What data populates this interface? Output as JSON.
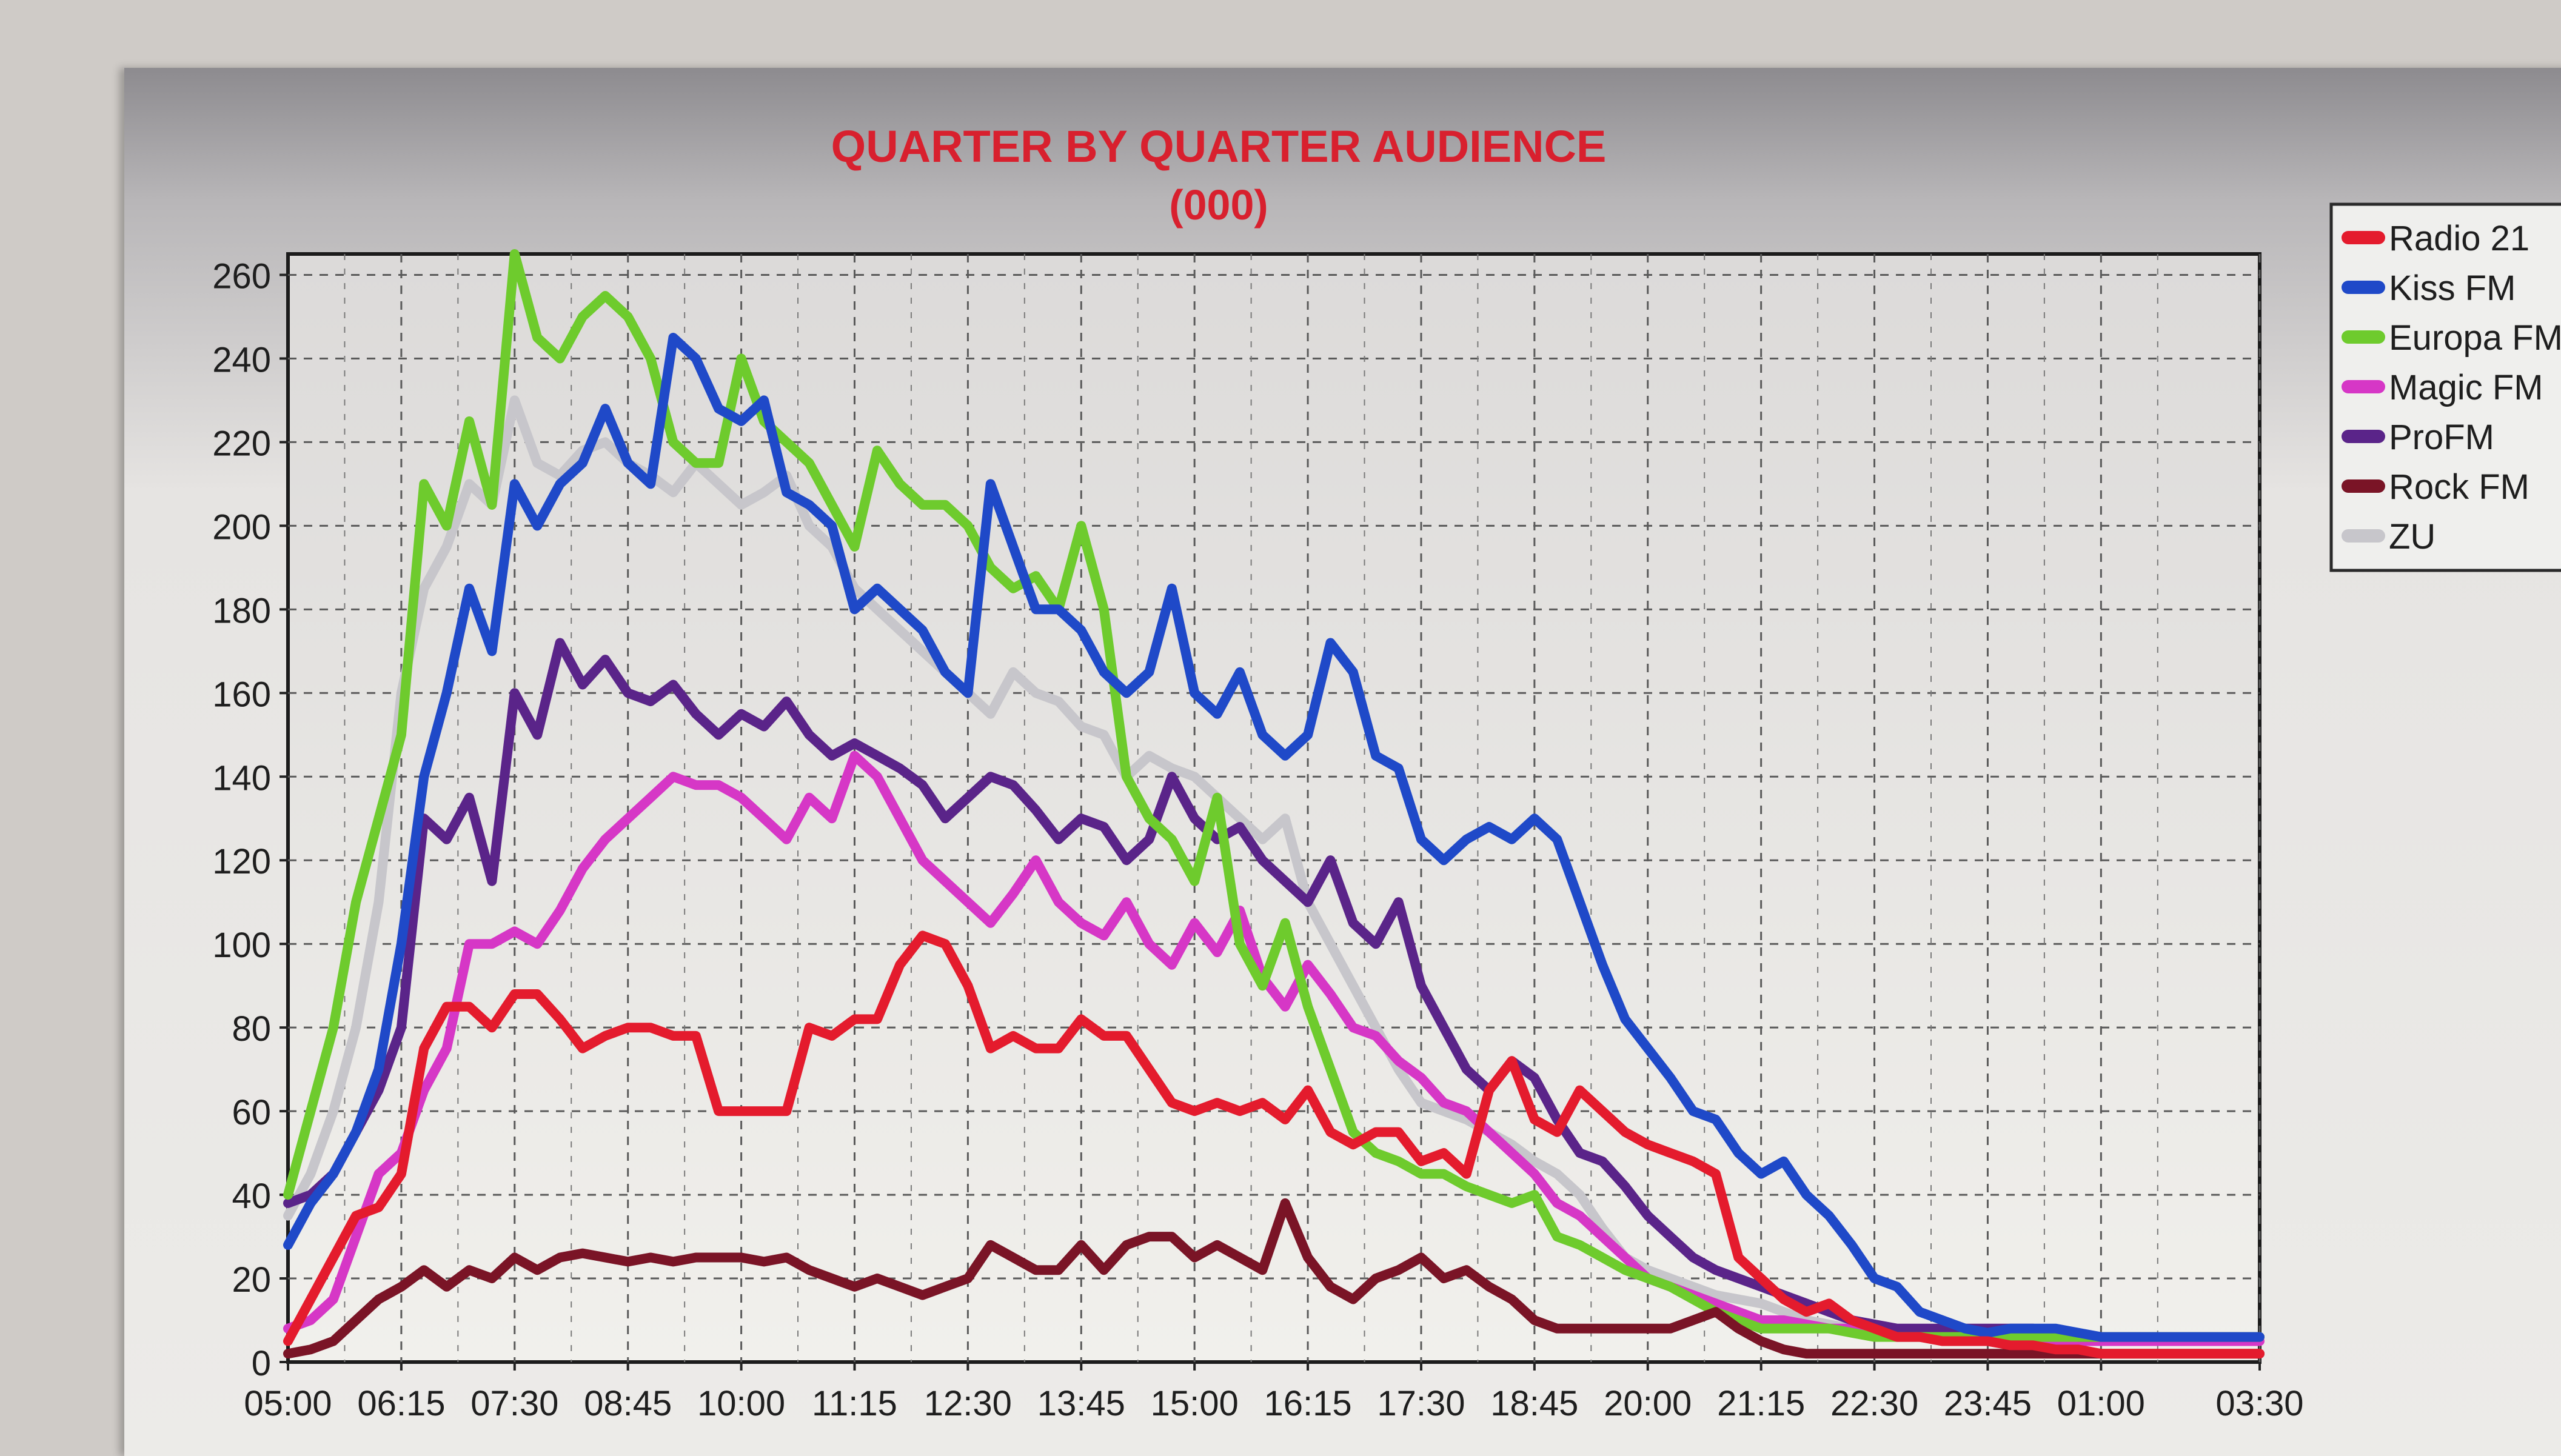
{
  "chart_data": {
    "type": "line",
    "title": "QUARTER BY QUARTER AUDIENCE",
    "subtitle": "(000)",
    "xlabel": "",
    "ylabel": "",
    "ylim": [
      0,
      265
    ],
    "yticks": [
      0,
      20,
      40,
      60,
      80,
      100,
      120,
      140,
      160,
      180,
      200,
      220,
      240,
      260
    ],
    "xticks": [
      "05:00",
      "06:15",
      "07:30",
      "08:45",
      "10:00",
      "11:15",
      "12:30",
      "13:45",
      "15:00",
      "16:15",
      "17:30",
      "18:45",
      "20:00",
      "21:15",
      "22:30",
      "23:45",
      "01:00",
      "03:30"
    ],
    "x_positions": [
      0,
      5,
      10,
      15,
      20,
      25,
      30,
      35,
      40,
      45,
      50,
      55,
      60,
      65,
      70,
      75,
      80,
      87
    ],
    "x_range": [
      0,
      87
    ],
    "grid": true,
    "legend_position": "top-right",
    "series": [
      {
        "name": "Radio 21",
        "color": "#e41b2d",
        "x": [
          0,
          1,
          2,
          3,
          4,
          5,
          6,
          7,
          8,
          9,
          10,
          11,
          12,
          13,
          14,
          15,
          16,
          17,
          18,
          19,
          20,
          21,
          22,
          23,
          24,
          25,
          26,
          27,
          28,
          29,
          30,
          31,
          32,
          33,
          34,
          35,
          36,
          37,
          38,
          39,
          40,
          41,
          42,
          43,
          44,
          45,
          46,
          47,
          48,
          49,
          50,
          51,
          52,
          53,
          54,
          55,
          56,
          57,
          58,
          59,
          60,
          61,
          62,
          63,
          64,
          65,
          66,
          67,
          68,
          69,
          70,
          71,
          72,
          73,
          74,
          75,
          76,
          77,
          78,
          79,
          80,
          81,
          82,
          83,
          84,
          85,
          86,
          87
        ],
        "values": [
          5,
          15,
          25,
          35,
          37,
          45,
          75,
          85,
          85,
          80,
          88,
          88,
          82,
          75,
          78,
          80,
          80,
          78,
          78,
          60,
          60,
          60,
          60,
          80,
          78,
          82,
          82,
          95,
          102,
          100,
          90,
          75,
          78,
          75,
          75,
          82,
          78,
          78,
          70,
          62,
          60,
          62,
          60,
          62,
          58,
          65,
          55,
          52,
          55,
          55,
          48,
          50,
          45,
          65,
          72,
          58,
          55,
          65,
          60,
          55,
          52,
          50,
          48,
          45,
          25,
          20,
          15,
          12,
          14,
          10,
          8,
          6,
          6,
          5,
          5,
          5,
          4,
          4,
          3,
          3,
          2,
          2,
          2,
          2,
          2,
          2,
          2,
          2
        ]
      },
      {
        "name": "Kiss FM",
        "color": "#1f49c8",
        "x": [
          0,
          1,
          2,
          3,
          4,
          5,
          6,
          7,
          8,
          9,
          10,
          11,
          12,
          13,
          14,
          15,
          16,
          17,
          18,
          19,
          20,
          21,
          22,
          23,
          24,
          25,
          26,
          27,
          28,
          29,
          30,
          31,
          32,
          33,
          34,
          35,
          36,
          37,
          38,
          39,
          40,
          41,
          42,
          43,
          44,
          45,
          46,
          47,
          48,
          49,
          50,
          51,
          52,
          53,
          54,
          55,
          56,
          57,
          58,
          59,
          60,
          61,
          62,
          63,
          64,
          65,
          66,
          67,
          68,
          69,
          70,
          71,
          72,
          73,
          74,
          75,
          76,
          77,
          78,
          79,
          80,
          81,
          82,
          83,
          84,
          85,
          86,
          87
        ],
        "values": [
          28,
          38,
          45,
          55,
          70,
          100,
          140,
          160,
          185,
          170,
          210,
          200,
          210,
          215,
          228,
          215,
          210,
          245,
          240,
          228,
          225,
          230,
          208,
          205,
          200,
          180,
          185,
          180,
          175,
          165,
          160,
          210,
          195,
          180,
          180,
          175,
          165,
          160,
          165,
          185,
          160,
          155,
          165,
          150,
          145,
          150,
          172,
          165,
          145,
          142,
          125,
          120,
          125,
          128,
          125,
          130,
          125,
          110,
          95,
          82,
          75,
          68,
          60,
          58,
          50,
          45,
          48,
          40,
          35,
          28,
          20,
          18,
          12,
          10,
          8,
          7,
          8,
          8,
          8,
          7,
          6,
          6,
          6,
          6,
          6,
          6,
          6,
          6
        ]
      },
      {
        "name": "Europa FM",
        "color": "#6ecb2d",
        "x": [
          0,
          1,
          2,
          3,
          4,
          5,
          6,
          7,
          8,
          9,
          10,
          11,
          12,
          13,
          14,
          15,
          16,
          17,
          18,
          19,
          20,
          21,
          22,
          23,
          24,
          25,
          26,
          27,
          28,
          29,
          30,
          31,
          32,
          33,
          34,
          35,
          36,
          37,
          38,
          39,
          40,
          41,
          42,
          43,
          44,
          45,
          46,
          47,
          48,
          49,
          50,
          51,
          52,
          53,
          54,
          55,
          56,
          57,
          58,
          59,
          60,
          61,
          62,
          63,
          64,
          65,
          66,
          67,
          68,
          69,
          70,
          71,
          72,
          73,
          74,
          75,
          76,
          77,
          78,
          79,
          80,
          81,
          82,
          83,
          84,
          85,
          86,
          87
        ],
        "values": [
          40,
          60,
          80,
          110,
          130,
          150,
          210,
          200,
          225,
          205,
          265,
          245,
          240,
          250,
          255,
          250,
          240,
          220,
          215,
          215,
          240,
          225,
          220,
          215,
          205,
          195,
          218,
          210,
          205,
          205,
          200,
          190,
          185,
          188,
          180,
          200,
          180,
          140,
          130,
          125,
          115,
          135,
          100,
          90,
          105,
          85,
          70,
          55,
          50,
          48,
          45,
          45,
          42,
          40,
          38,
          40,
          30,
          28,
          25,
          22,
          20,
          18,
          15,
          12,
          10,
          8,
          8,
          8,
          8,
          7,
          6,
          6,
          6,
          6,
          6,
          6,
          6,
          6,
          6,
          6,
          6,
          6,
          6,
          6,
          6,
          6,
          6,
          6
        ]
      },
      {
        "name": "Magic FM",
        "color": "#d637c6",
        "x": [
          0,
          1,
          2,
          3,
          4,
          5,
          6,
          7,
          8,
          9,
          10,
          11,
          12,
          13,
          14,
          15,
          16,
          17,
          18,
          19,
          20,
          21,
          22,
          23,
          24,
          25,
          26,
          27,
          28,
          29,
          30,
          31,
          32,
          33,
          34,
          35,
          36,
          37,
          38,
          39,
          40,
          41,
          42,
          43,
          44,
          45,
          46,
          47,
          48,
          49,
          50,
          51,
          52,
          53,
          54,
          55,
          56,
          57,
          58,
          59,
          60,
          61,
          62,
          63,
          64,
          65,
          66,
          67,
          68,
          69,
          70,
          71,
          72,
          73,
          74,
          75,
          76,
          77,
          78,
          79,
          80,
          81,
          82,
          83,
          84,
          85,
          86,
          87
        ],
        "values": [
          8,
          10,
          15,
          30,
          45,
          50,
          65,
          75,
          100,
          100,
          103,
          100,
          108,
          118,
          125,
          130,
          135,
          140,
          138,
          138,
          135,
          130,
          125,
          135,
          130,
          145,
          140,
          130,
          120,
          115,
          110,
          105,
          112,
          120,
          110,
          105,
          102,
          110,
          100,
          95,
          105,
          98,
          108,
          92,
          85,
          95,
          88,
          80,
          78,
          72,
          68,
          62,
          60,
          55,
          50,
          45,
          38,
          35,
          30,
          25,
          20,
          18,
          16,
          14,
          12,
          10,
          10,
          9,
          8,
          8,
          7,
          6,
          6,
          6,
          6,
          6,
          5,
          5,
          5,
          5,
          5,
          5,
          5,
          5,
          5,
          5,
          5,
          5
        ]
      },
      {
        "name": "ProFM",
        "color": "#5a2489",
        "x": [
          0,
          1,
          2,
          3,
          4,
          5,
          6,
          7,
          8,
          9,
          10,
          11,
          12,
          13,
          14,
          15,
          16,
          17,
          18,
          19,
          20,
          21,
          22,
          23,
          24,
          25,
          26,
          27,
          28,
          29,
          30,
          31,
          32,
          33,
          34,
          35,
          36,
          37,
          38,
          39,
          40,
          41,
          42,
          43,
          44,
          45,
          46,
          47,
          48,
          49,
          50,
          51,
          52,
          53,
          54,
          55,
          56,
          57,
          58,
          59,
          60,
          61,
          62,
          63,
          64,
          65,
          66,
          67,
          68,
          69,
          70,
          71,
          72,
          73,
          74,
          75,
          76,
          77,
          78,
          79,
          80,
          81,
          82,
          83,
          84,
          85,
          86,
          87
        ],
        "values": [
          38,
          40,
          45,
          55,
          65,
          80,
          130,
          125,
          135,
          115,
          160,
          150,
          172,
          162,
          168,
          160,
          158,
          162,
          155,
          150,
          155,
          152,
          158,
          150,
          145,
          148,
          145,
          142,
          138,
          130,
          135,
          140,
          138,
          132,
          125,
          130,
          128,
          120,
          125,
          140,
          130,
          125,
          128,
          120,
          115,
          110,
          120,
          105,
          100,
          110,
          90,
          80,
          70,
          65,
          72,
          68,
          58,
          50,
          48,
          42,
          35,
          30,
          25,
          22,
          20,
          18,
          16,
          14,
          12,
          10,
          9,
          8,
          8,
          8,
          8,
          8,
          8,
          8,
          7,
          6,
          6,
          6,
          6,
          6,
          6,
          6,
          6,
          6
        ]
      },
      {
        "name": "Rock FM",
        "color": "#7a1426",
        "x": [
          0,
          1,
          2,
          3,
          4,
          5,
          6,
          7,
          8,
          9,
          10,
          11,
          12,
          13,
          14,
          15,
          16,
          17,
          18,
          19,
          20,
          21,
          22,
          23,
          24,
          25,
          26,
          27,
          28,
          29,
          30,
          31,
          32,
          33,
          34,
          35,
          36,
          37,
          38,
          39,
          40,
          41,
          42,
          43,
          44,
          45,
          46,
          47,
          48,
          49,
          50,
          51,
          52,
          53,
          54,
          55,
          56,
          57,
          58,
          59,
          60,
          61,
          62,
          63,
          64,
          65,
          66,
          67,
          68,
          69,
          70,
          71,
          72,
          73,
          74,
          75,
          76,
          77,
          78,
          79,
          80,
          81,
          82,
          83,
          84,
          85,
          86,
          87
        ],
        "values": [
          2,
          3,
          5,
          10,
          15,
          18,
          22,
          18,
          22,
          20,
          25,
          22,
          25,
          26,
          25,
          24,
          25,
          24,
          25,
          25,
          25,
          24,
          25,
          22,
          20,
          18,
          20,
          18,
          16,
          18,
          20,
          28,
          25,
          22,
          22,
          28,
          22,
          28,
          30,
          30,
          25,
          28,
          25,
          22,
          38,
          25,
          18,
          15,
          20,
          22,
          25,
          20,
          22,
          18,
          15,
          10,
          8,
          8,
          8,
          8,
          8,
          8,
          10,
          12,
          8,
          5,
          3,
          2,
          2,
          2,
          2,
          2,
          2,
          2,
          2,
          2,
          2,
          2,
          2,
          2,
          2,
          2,
          2,
          2,
          2,
          2,
          2,
          2
        ]
      },
      {
        "name": "ZU",
        "color": "#c7c6cb",
        "x": [
          0,
          1,
          2,
          3,
          4,
          5,
          6,
          7,
          8,
          9,
          10,
          11,
          12,
          13,
          14,
          15,
          16,
          17,
          18,
          19,
          20,
          21,
          22,
          23,
          24,
          25,
          26,
          27,
          28,
          29,
          30,
          31,
          32,
          33,
          34,
          35,
          36,
          37,
          38,
          39,
          40,
          41,
          42,
          43,
          44,
          45,
          46,
          47,
          48,
          49,
          50,
          51,
          52,
          53,
          54,
          55,
          56,
          57,
          58,
          59,
          60,
          61,
          62,
          63,
          64,
          65,
          66,
          67,
          68,
          69,
          70,
          71,
          72,
          73,
          74,
          75,
          76,
          77,
          78,
          79,
          80,
          81,
          82,
          83,
          84,
          85,
          86,
          87
        ],
        "values": [
          35,
          45,
          60,
          80,
          110,
          160,
          185,
          195,
          210,
          205,
          230,
          215,
          212,
          218,
          220,
          215,
          212,
          208,
          215,
          210,
          205,
          208,
          212,
          200,
          195,
          185,
          180,
          175,
          170,
          165,
          160,
          155,
          165,
          160,
          158,
          152,
          150,
          140,
          145,
          142,
          140,
          135,
          130,
          125,
          130,
          110,
          100,
          90,
          80,
          70,
          62,
          60,
          58,
          55,
          52,
          48,
          45,
          40,
          32,
          25,
          22,
          20,
          18,
          16,
          15,
          14,
          12,
          10,
          9,
          8,
          8,
          7,
          7,
          7,
          7,
          7,
          6,
          6,
          6,
          6,
          6,
          6,
          6,
          6,
          6,
          6,
          6,
          6
        ]
      }
    ]
  }
}
